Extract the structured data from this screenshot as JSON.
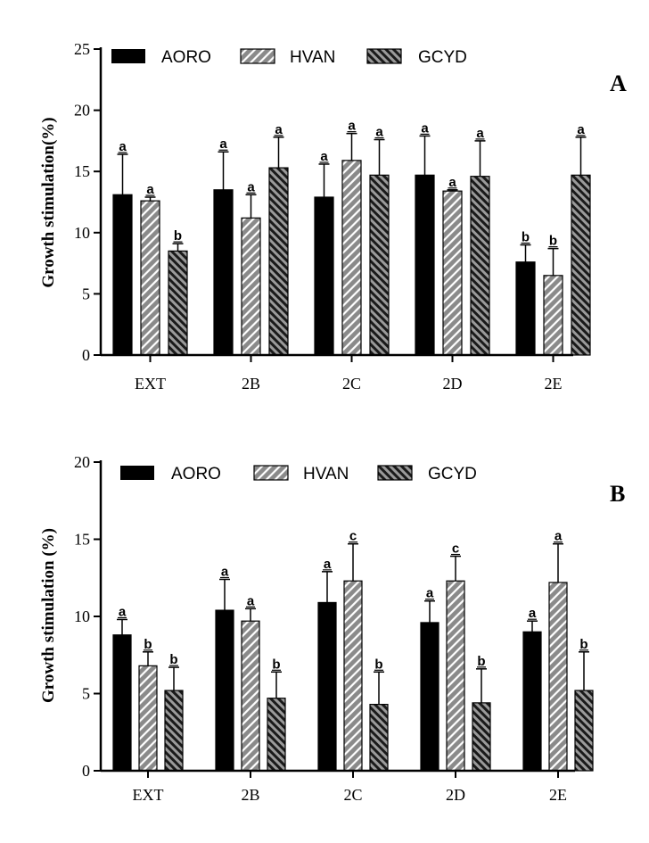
{
  "chart_data": [
    {
      "type": "bar",
      "panel_label": "A",
      "categories": [
        "EXT",
        "2B",
        "2C",
        "2D",
        "2E"
      ],
      "ylabel": "Growth stimulation(%)",
      "ylim": [
        0,
        25
      ],
      "yticks": [
        0,
        5,
        10,
        15,
        20,
        25
      ],
      "grid": false,
      "legend": "top",
      "series": [
        {
          "name": "AORO",
          "values": [
            13.1,
            13.5,
            12.9,
            14.7,
            7.6
          ],
          "errors": [
            3.3,
            3.1,
            2.7,
            3.2,
            1.4
          ],
          "labels": [
            "a",
            "a",
            "a",
            "a",
            "b"
          ]
        },
        {
          "name": "HVAN",
          "values": [
            12.6,
            11.2,
            15.9,
            13.4,
            6.5
          ],
          "errors": [
            0.3,
            1.9,
            2.2,
            0.1,
            2.2
          ],
          "labels": [
            "a",
            "a",
            "a",
            "a",
            "b"
          ]
        },
        {
          "name": "GCYD",
          "values": [
            8.5,
            15.3,
            14.7,
            14.6,
            14.7
          ],
          "errors": [
            0.6,
            2.5,
            2.9,
            2.9,
            3.1
          ],
          "labels": [
            "b",
            "a",
            "a",
            "a",
            "a"
          ]
        }
      ]
    },
    {
      "type": "bar",
      "panel_label": "B",
      "categories": [
        "EXT",
        "2B",
        "2C",
        "2D",
        "2E"
      ],
      "ylabel": "Growth stimulation (%)",
      "ylim": [
        0,
        20
      ],
      "yticks": [
        0,
        5,
        10,
        15,
        20
      ],
      "grid": false,
      "legend": "top",
      "series": [
        {
          "name": "AORO",
          "values": [
            8.8,
            10.4,
            10.9,
            9.6,
            9.0
          ],
          "errors": [
            1.0,
            2.0,
            2.0,
            1.4,
            0.7
          ],
          "labels": [
            "a",
            "a",
            "a",
            "a",
            "a"
          ]
        },
        {
          "name": "HVAN",
          "values": [
            6.8,
            9.7,
            12.3,
            12.3,
            12.2
          ],
          "errors": [
            0.9,
            0.8,
            2.4,
            1.6,
            2.5
          ],
          "labels": [
            "b",
            "a",
            "c",
            "c",
            "a"
          ]
        },
        {
          "name": "GCYD",
          "values": [
            5.2,
            4.7,
            4.3,
            4.4,
            5.2
          ],
          "errors": [
            1.5,
            1.7,
            2.1,
            2.2,
            2.5
          ],
          "labels": [
            "b",
            "b",
            "b",
            "b",
            "b"
          ]
        }
      ]
    }
  ],
  "colors": {
    "AORO": "#000000",
    "HVAN": "#8a8a8a",
    "GCYD": "#3a3a3a",
    "axis": "#000000"
  }
}
